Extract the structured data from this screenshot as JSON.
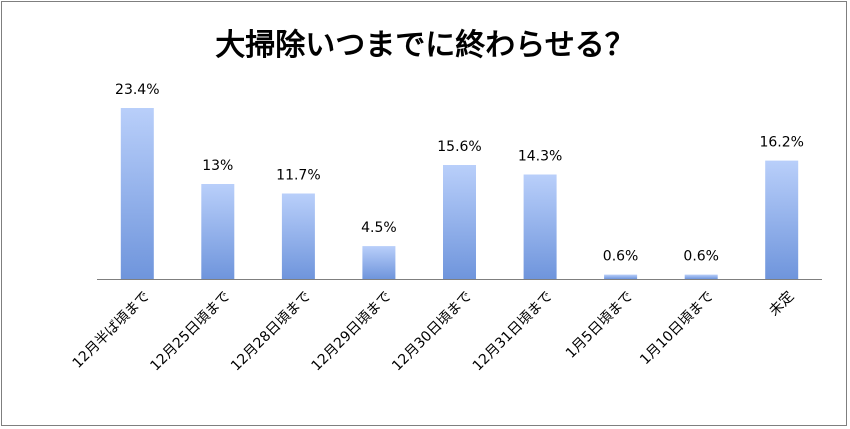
{
  "chart_data": {
    "type": "bar",
    "title": "大掃除いつまでに終わらせる？",
    "categories": [
      "12月半ば頃まで",
      "12月25日頃まで",
      "12月28日頃まで",
      "12月29日頃まで",
      "12月30日頃まで",
      "12月31日頃まで",
      "1月5日頃まで",
      "1月10日頃まで",
      "未定"
    ],
    "values": [
      23.4,
      13,
      11.7,
      4.5,
      15.6,
      14.3,
      0.6,
      0.6,
      16.2
    ],
    "data_labels": [
      "23.4%",
      "13%",
      "11.7%",
      "4.5%",
      "15.6%",
      "14.3%",
      "0.6%",
      "0.6%",
      "16.2%"
    ],
    "xlabel": "",
    "ylabel": "",
    "ylim": [
      0,
      23.4
    ],
    "grid": false,
    "legend": "none",
    "colors": {
      "bar_top": "#b9cffa",
      "bar_bottom": "#6f95dc",
      "axis": "#7f7f7f"
    }
  }
}
